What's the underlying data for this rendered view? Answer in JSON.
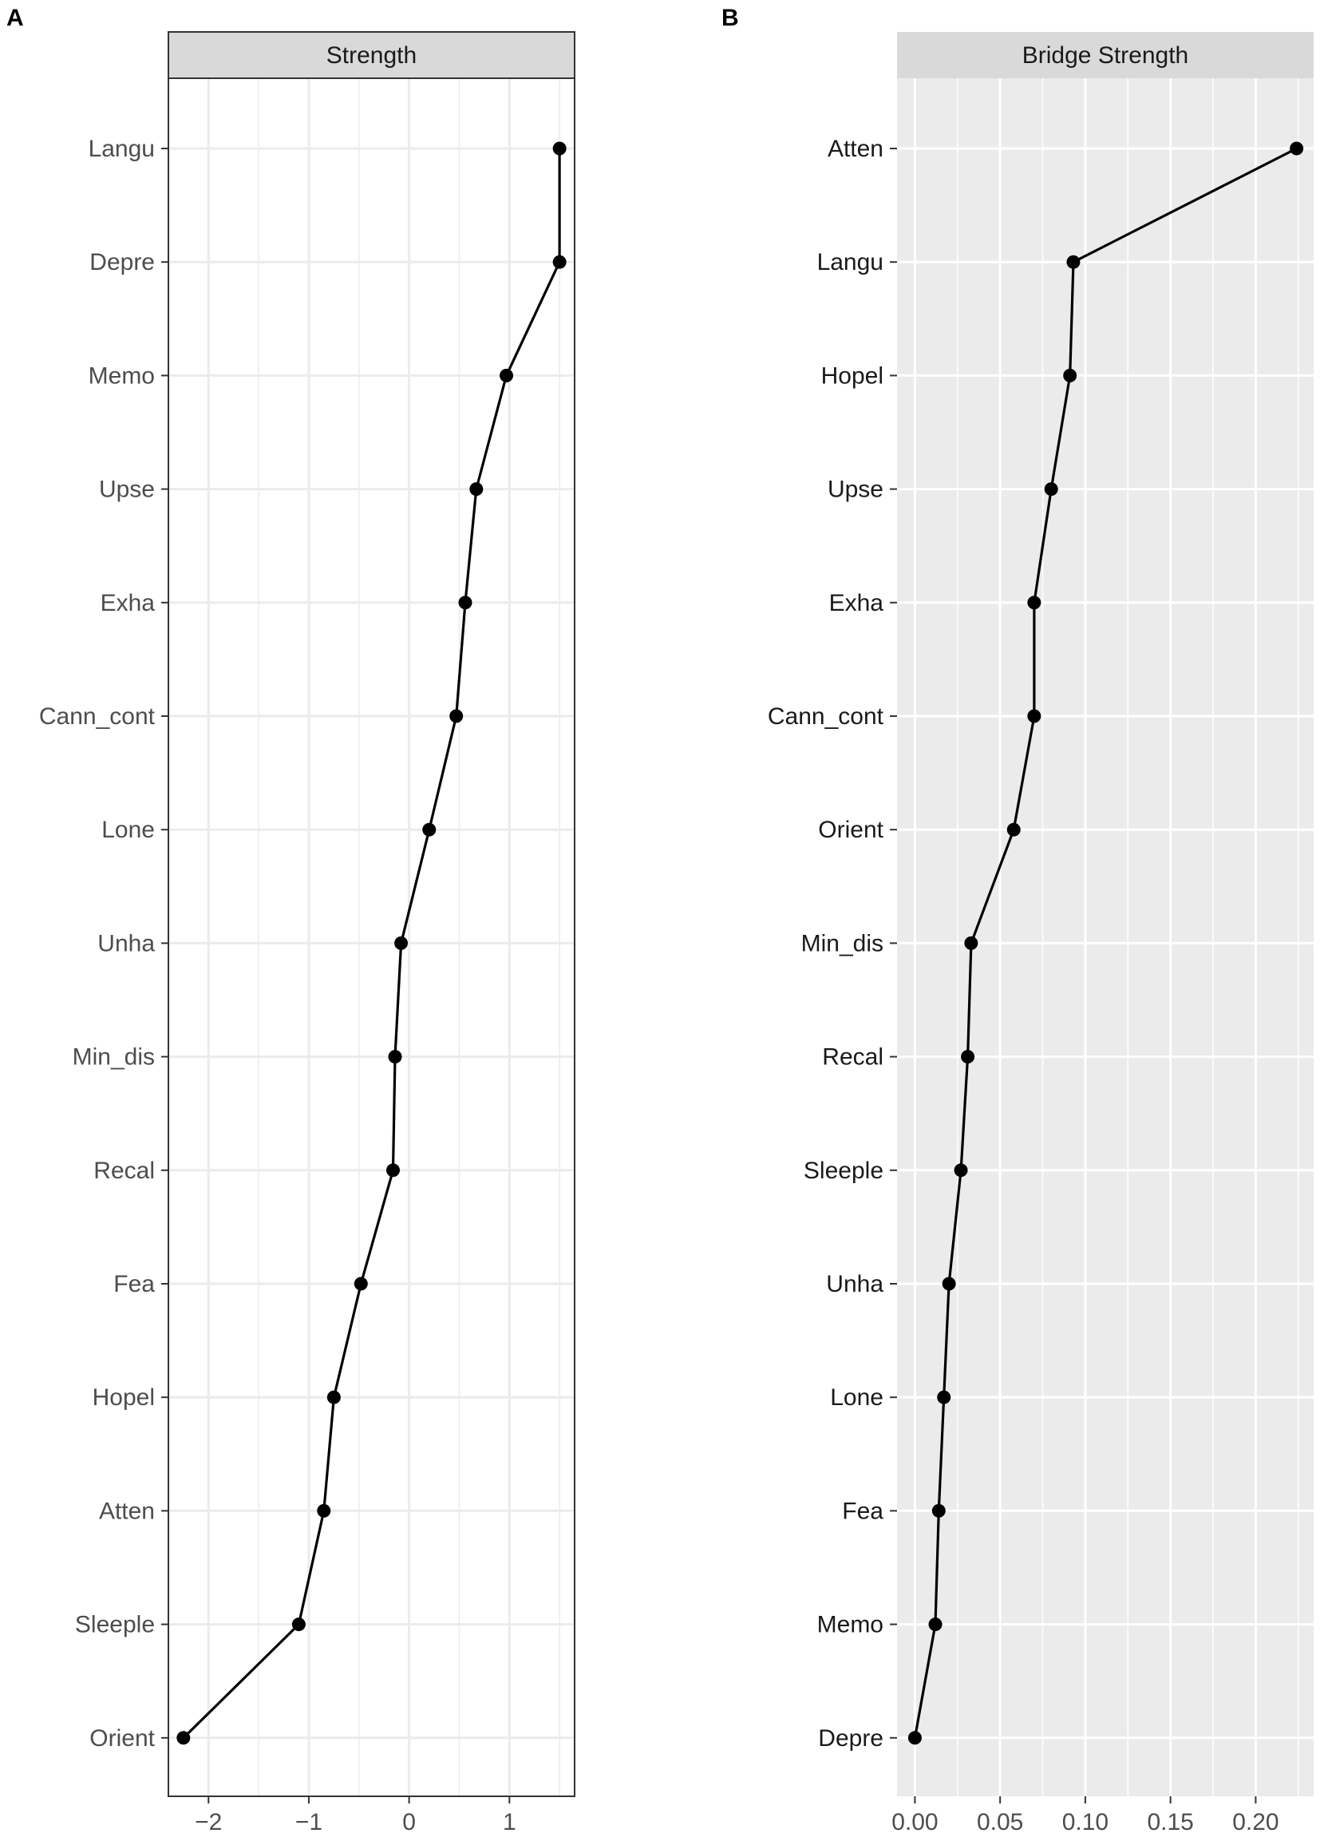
{
  "chart_data": [
    {
      "type": "line",
      "panel_label": "A",
      "title": "Strength",
      "theme": "bw",
      "grid": true,
      "xlim": [
        -2.4,
        1.65
      ],
      "x_ticks": [
        -2,
        -1,
        0,
        1
      ],
      "x_tick_labels": [
        "−2",
        "−1",
        "0",
        "1"
      ],
      "categories": [
        "Langu",
        "Depre",
        "Memo",
        "Upse",
        "Exha",
        "Cann_cont",
        "Lone",
        "Unha",
        "Min_dis",
        "Recal",
        "Fea",
        "Hopel",
        "Atten",
        "Sleeple",
        "Orient"
      ],
      "values": [
        1.5,
        1.5,
        0.97,
        0.67,
        0.56,
        0.47,
        0.2,
        -0.08,
        -0.14,
        -0.16,
        -0.48,
        -0.75,
        -0.85,
        -1.1,
        -2.25
      ]
    },
    {
      "type": "line",
      "panel_label": "B",
      "title": "Bridge Strength",
      "theme": "grey",
      "grid": true,
      "xlim": [
        -0.0105,
        0.234
      ],
      "x_ticks": [
        0.0,
        0.05,
        0.1,
        0.15,
        0.2
      ],
      "x_tick_labels": [
        "0.00",
        "0.05",
        "0.10",
        "0.15",
        "0.20"
      ],
      "categories": [
        "Atten",
        "Langu",
        "Hopel",
        "Upse",
        "Exha",
        "Cann_cont",
        "Orient",
        "Min_dis",
        "Recal",
        "Sleeple",
        "Unha",
        "Lone",
        "Fea",
        "Memo",
        "Depre"
      ],
      "values": [
        0.224,
        0.093,
        0.091,
        0.08,
        0.07,
        0.07,
        0.058,
        0.033,
        0.031,
        0.027,
        0.02,
        0.017,
        0.014,
        0.012,
        0.0
      ]
    }
  ]
}
